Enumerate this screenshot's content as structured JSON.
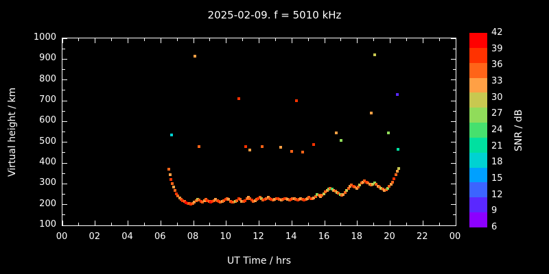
{
  "chart_data": {
    "type": "scatter",
    "title": "2025-02-09. f = 5010 kHz",
    "xlabel": "UT Time / hrs",
    "ylabel": "Virtual height / km",
    "xlim": [
      0,
      24
    ],
    "ylim": [
      100,
      1000
    ],
    "grid": false,
    "background": "#000000",
    "x_ticks": [
      "00",
      "02",
      "04",
      "06",
      "08",
      "10",
      "12",
      "14",
      "16",
      "18",
      "20",
      "22",
      "00"
    ],
    "y_ticks": [
      "1000",
      "900",
      "800",
      "700",
      "600",
      "500",
      "400",
      "300",
      "200",
      "100"
    ],
    "colorbar": {
      "label": "SNR / dB",
      "ticks": [
        "42",
        "39",
        "36",
        "33",
        "30",
        "27",
        "24",
        "21",
        "18",
        "15",
        "12",
        "9",
        "6"
      ],
      "min": 6,
      "max": 42,
      "step": 3,
      "colors_top_to_bottom": [
        "#ff0000",
        "#ff3200",
        "#ff6418",
        "#ffa045",
        "#c8c850",
        "#90dc5a",
        "#46e06e",
        "#00e0a0",
        "#00d2d2",
        "#00a0ff",
        "#3c64ff",
        "#5a28ff",
        "#8c00ff"
      ]
    },
    "point_meaning": [
      "ut_hours",
      "virtual_height_km",
      "snr_db"
    ],
    "points": [
      [
        6.5,
        370,
        36
      ],
      [
        6.57,
        345,
        33
      ],
      [
        6.63,
        322,
        39
      ],
      [
        6.7,
        302,
        36
      ],
      [
        6.78,
        284,
        33
      ],
      [
        6.86,
        268,
        36
      ],
      [
        6.95,
        252,
        39
      ],
      [
        7.05,
        242,
        36
      ],
      [
        7.15,
        233,
        33
      ],
      [
        7.25,
        226,
        36
      ],
      [
        7.35,
        220,
        39
      ],
      [
        7.45,
        214,
        36
      ],
      [
        7.55,
        210,
        42
      ],
      [
        7.65,
        207,
        39
      ],
      [
        7.75,
        204,
        36
      ],
      [
        7.85,
        203,
        39
      ],
      [
        7.95,
        206,
        36
      ],
      [
        8.05,
        212,
        33
      ],
      [
        8.15,
        218,
        36
      ],
      [
        8.25,
        224,
        30
      ],
      [
        8.35,
        222,
        36
      ],
      [
        8.45,
        216,
        39
      ],
      [
        8.55,
        213,
        36
      ],
      [
        8.65,
        218,
        33
      ],
      [
        8.75,
        224,
        36
      ],
      [
        8.85,
        220,
        39
      ],
      [
        8.95,
        214,
        36
      ],
      [
        9.05,
        211,
        42
      ],
      [
        9.15,
        214,
        39
      ],
      [
        9.25,
        219,
        36
      ],
      [
        9.35,
        224,
        33
      ],
      [
        9.45,
        219,
        36
      ],
      [
        9.55,
        214,
        39
      ],
      [
        9.65,
        211,
        36
      ],
      [
        9.75,
        214,
        33
      ],
      [
        9.85,
        219,
        36
      ],
      [
        9.95,
        225,
        39
      ],
      [
        10.05,
        230,
        36
      ],
      [
        10.15,
        224,
        33
      ],
      [
        10.25,
        217,
        36
      ],
      [
        10.35,
        213,
        39
      ],
      [
        10.45,
        211,
        36
      ],
      [
        10.55,
        214,
        30
      ],
      [
        10.65,
        220,
        36
      ],
      [
        10.75,
        229,
        39
      ],
      [
        10.85,
        224,
        36
      ],
      [
        10.95,
        217,
        33
      ],
      [
        11.05,
        214,
        36
      ],
      [
        11.15,
        219,
        39
      ],
      [
        11.25,
        227,
        36
      ],
      [
        11.35,
        234,
        33
      ],
      [
        11.45,
        229,
        36
      ],
      [
        11.55,
        221,
        39
      ],
      [
        11.65,
        217,
        36
      ],
      [
        11.75,
        219,
        33
      ],
      [
        11.85,
        224,
        36
      ],
      [
        11.95,
        229,
        39
      ],
      [
        12.05,
        234,
        36
      ],
      [
        12.15,
        227,
        30
      ],
      [
        12.25,
        221,
        36
      ],
      [
        12.35,
        224,
        39
      ],
      [
        12.45,
        229,
        36
      ],
      [
        12.55,
        234,
        33
      ],
      [
        12.65,
        229,
        36
      ],
      [
        12.75,
        224,
        39
      ],
      [
        12.85,
        221,
        36
      ],
      [
        12.95,
        224,
        33
      ],
      [
        13.05,
        229,
        36
      ],
      [
        13.15,
        227,
        39
      ],
      [
        13.25,
        224,
        36
      ],
      [
        13.35,
        221,
        33
      ],
      [
        13.45,
        224,
        36
      ],
      [
        13.55,
        229,
        39
      ],
      [
        13.65,
        227,
        36
      ],
      [
        13.75,
        224,
        33
      ],
      [
        13.85,
        221,
        36
      ],
      [
        13.95,
        224,
        39
      ],
      [
        14.05,
        227,
        36
      ],
      [
        14.15,
        229,
        33
      ],
      [
        14.25,
        224,
        36
      ],
      [
        14.35,
        221,
        39
      ],
      [
        14.45,
        224,
        36
      ],
      [
        14.55,
        227,
        33
      ],
      [
        14.65,
        224,
        36
      ],
      [
        14.75,
        221,
        39
      ],
      [
        14.85,
        224,
        36
      ],
      [
        14.95,
        229,
        33
      ],
      [
        15.05,
        234,
        36
      ],
      [
        15.15,
        229,
        39
      ],
      [
        15.25,
        227,
        36
      ],
      [
        15.35,
        231,
        33
      ],
      [
        15.45,
        239,
        36
      ],
      [
        15.55,
        248,
        27
      ],
      [
        15.65,
        244,
        36
      ],
      [
        15.75,
        239,
        33
      ],
      [
        15.85,
        244,
        36
      ],
      [
        15.95,
        253,
        30
      ],
      [
        16.05,
        263,
        36
      ],
      [
        16.15,
        269,
        33
      ],
      [
        16.25,
        274,
        27
      ],
      [
        16.35,
        279,
        36
      ],
      [
        16.45,
        274,
        24
      ],
      [
        16.55,
        269,
        33
      ],
      [
        16.65,
        264,
        36
      ],
      [
        16.75,
        259,
        30
      ],
      [
        16.85,
        254,
        36
      ],
      [
        16.95,
        249,
        27
      ],
      [
        17.05,
        245,
        36
      ],
      [
        17.15,
        249,
        33
      ],
      [
        17.25,
        259,
        36
      ],
      [
        17.35,
        269,
        30
      ],
      [
        17.45,
        279,
        36
      ],
      [
        17.55,
        289,
        33
      ],
      [
        17.65,
        294,
        36
      ],
      [
        17.75,
        289,
        39
      ],
      [
        17.85,
        284,
        36
      ],
      [
        17.95,
        279,
        33
      ],
      [
        18.05,
        284,
        36
      ],
      [
        18.15,
        294,
        30
      ],
      [
        18.25,
        304,
        36
      ],
      [
        18.35,
        309,
        33
      ],
      [
        18.45,
        314,
        36
      ],
      [
        18.55,
        309,
        39
      ],
      [
        18.65,
        304,
        36
      ],
      [
        18.75,
        299,
        33
      ],
      [
        18.85,
        294,
        36
      ],
      [
        18.95,
        299,
        30
      ],
      [
        19.05,
        304,
        27
      ],
      [
        19.15,
        299,
        36
      ],
      [
        19.25,
        289,
        33
      ],
      [
        19.35,
        284,
        36
      ],
      [
        19.45,
        279,
        30
      ],
      [
        19.55,
        274,
        36
      ],
      [
        19.65,
        269,
        33
      ],
      [
        19.75,
        272,
        36
      ],
      [
        19.85,
        279,
        27
      ],
      [
        19.95,
        289,
        36
      ],
      [
        20.05,
        299,
        33
      ],
      [
        20.15,
        309,
        36
      ],
      [
        20.25,
        324,
        39
      ],
      [
        20.35,
        344,
        36
      ],
      [
        20.45,
        362,
        33
      ],
      [
        20.52,
        372,
        30
      ],
      [
        6.65,
        535,
        18
      ],
      [
        8.1,
        915,
        33
      ],
      [
        8.35,
        480,
        36
      ],
      [
        10.75,
        710,
        39
      ],
      [
        11.2,
        480,
        39
      ],
      [
        11.45,
        462,
        33
      ],
      [
        12.2,
        478,
        36
      ],
      [
        13.3,
        475,
        33
      ],
      [
        14.0,
        455,
        36
      ],
      [
        14.3,
        700,
        39
      ],
      [
        14.65,
        452,
        36
      ],
      [
        15.35,
        490,
        39
      ],
      [
        16.7,
        545,
        33
      ],
      [
        17.0,
        510,
        27
      ],
      [
        18.85,
        640,
        33
      ],
      [
        19.05,
        920,
        30
      ],
      [
        19.9,
        545,
        27
      ],
      [
        20.45,
        730,
        9
      ],
      [
        20.5,
        465,
        21
      ]
    ]
  }
}
